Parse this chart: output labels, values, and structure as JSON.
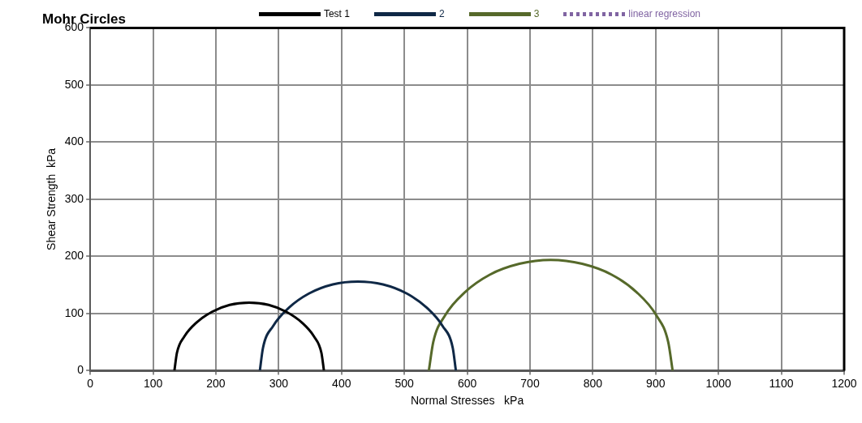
{
  "chart_data": {
    "type": "line",
    "title": "Mohr Circles",
    "xlabel": "Normal Stresses   kPa",
    "ylabel": "Shear Strength  kPa",
    "xlim": [
      0,
      1200
    ],
    "xticks": [
      0,
      100,
      200,
      300,
      400,
      500,
      600,
      700,
      800,
      900,
      1000,
      1100,
      1200
    ],
    "ylim": [
      0,
      600
    ],
    "yticks": [
      0,
      100,
      200,
      300,
      400,
      500,
      600
    ],
    "grid": true,
    "legend": "top",
    "marker": "none",
    "series": [
      {
        "name": "Test 1",
        "color": "#000000",
        "line_style": "solid",
        "x": [
          134,
          138,
          150,
          169,
          194,
          222,
          253,
          284,
          312,
          337,
          356,
          368,
          372
        ],
        "values": [
          0,
          31,
          60,
          84,
          103,
          115,
          119,
          115,
          103,
          84,
          60,
          31,
          0
        ]
      },
      {
        "name": "2",
        "color": "#0f2846",
        "line_style": "solid",
        "x": [
          270,
          275,
          291,
          316,
          348,
          386,
          426,
          466,
          504,
          536,
          561,
          577,
          582
        ],
        "values": [
          0,
          40,
          78,
          110,
          135,
          151,
          156,
          151,
          135,
          110,
          78,
          40,
          0
        ]
      },
      {
        "name": "3",
        "color": "#56692a",
        "line_style": "solid",
        "x": [
          539,
          546,
          565,
          596,
          636,
          683,
          733,
          783,
          830,
          870,
          901,
          920,
          927
        ],
        "values": [
          0,
          50,
          97,
          137,
          168,
          187,
          194,
          187,
          168,
          137,
          97,
          50,
          0
        ]
      },
      {
        "name": "linear regression",
        "color": "#8064a2",
        "line_style": "dashed"
      }
    ]
  }
}
